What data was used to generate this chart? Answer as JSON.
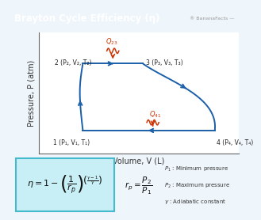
{
  "title": "Brayton Cycle Efficiency (η)",
  "title_bg": "#2272b8",
  "title_fg": "white",
  "bg_color": "#eef5fb",
  "chart_bg": "white",
  "xlabel": "Volume, V (L)",
  "ylabel": "Pressure, P (atm)",
  "curve_color": "#1a5fa8",
  "heat_color": "#cc3300",
  "formula_box_color": "#c8eff5",
  "formula_border": "#44bbcc",
  "watermark": "® BananaFacts —",
  "watermark_color": "#999999",
  "p2": [
    0.22,
    0.78
  ],
  "p3": [
    0.52,
    0.78
  ],
  "p1": [
    0.22,
    0.2
  ],
  "p4": [
    0.88,
    0.2
  ],
  "label1": "1 (P₁, V₁, T₁)",
  "label2": "2 (P₂, V₂, T₂)",
  "label3": "3 (P₃, V₃, T₃)",
  "label4": "4 (P₄, V₄, T₄)"
}
